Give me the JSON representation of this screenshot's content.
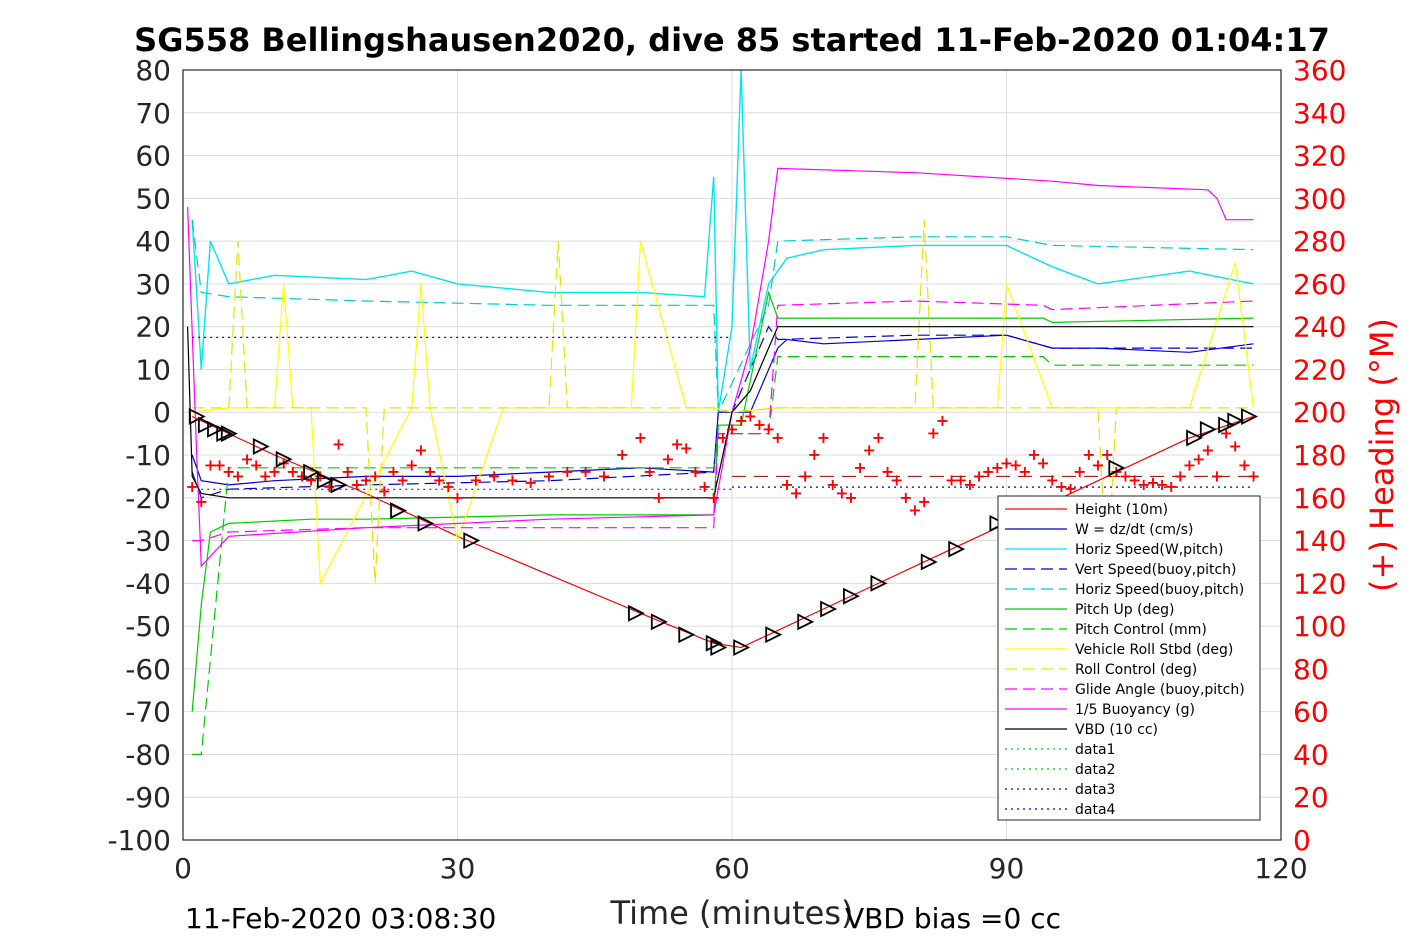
{
  "chart_data": {
    "type": "line",
    "title": "SG558 Bellingshausen2020, dive 85 started 11-Feb-2020 01:04:17",
    "xlabel": "Time (minutes)",
    "ylabel_right": "(+) Heading (°M)",
    "xlim": [
      0,
      120
    ],
    "ylim": [
      -100,
      80
    ],
    "ylim_right": [
      0,
      360
    ],
    "x_ticks": [
      "0",
      "30",
      "60",
      "90",
      "120"
    ],
    "y_ticks": [
      "80",
      "70",
      "60",
      "50",
      "40",
      "30",
      "20",
      "10",
      "0",
      "-10",
      "-20",
      "-30",
      "-40",
      "-50",
      "-60",
      "-70",
      "-80",
      "-90",
      "-100"
    ],
    "y_ticks_right": [
      "360",
      "340",
      "320",
      "300",
      "280",
      "260",
      "240",
      "220",
      "200",
      "180",
      "160",
      "140",
      "120",
      "100",
      "80",
      "60",
      "40",
      "20",
      "0"
    ],
    "grid": true,
    "legend_position": "bottom-right",
    "colors": {
      "height": "#ff0000",
      "w": "#0000cc",
      "horiz_w": "#00e5ee",
      "vert_buoy": "#0000cc",
      "horiz_buoy": "#00cccc",
      "pitch": "#00cc00",
      "pitch_control": "#00cc00",
      "roll": "#ffff00",
      "roll_control": "#e6e600",
      "glide": "#ff00ff",
      "buoyancy": "#ff00ff",
      "vbd": "#000000",
      "heading": "#ff0000",
      "data1": "#00cc00",
      "data2": "#00cc00",
      "data3": "#0000cc",
      "data4": "#0000cc"
    },
    "series": [
      {
        "key": "height",
        "name": "Height (10m)",
        "x": [
          1,
          10,
          20,
          30,
          40,
          50,
          58,
          61,
          64,
          70,
          80,
          90,
          100,
          110,
          117
        ],
        "values": [
          -1,
          -10,
          -19,
          -29,
          -38,
          -47,
          -54,
          -55,
          -52,
          -46,
          -36,
          -26,
          -16,
          -6,
          -1
        ]
      },
      {
        "key": "w",
        "name": "W = dz/dt (cm/s)",
        "x": [
          1,
          2,
          5,
          10,
          20,
          30,
          40,
          50,
          58,
          58.5,
          60,
          62,
          63,
          65,
          66,
          70,
          80,
          90,
          95,
          100,
          110,
          117
        ],
        "values": [
          -10,
          -16,
          -17,
          -16,
          -15,
          -15,
          -14,
          -13,
          -14,
          0,
          0,
          0,
          5,
          15,
          17,
          16,
          17,
          18,
          15,
          15,
          14,
          16
        ]
      },
      {
        "key": "horiz_w",
        "name": "Horiz Speed(W,pitch)",
        "x": [
          1,
          2,
          3,
          5,
          10,
          20,
          25,
          30,
          40,
          50,
          57,
          58,
          58.5,
          60,
          61,
          62,
          64,
          66,
          70,
          80,
          90,
          95,
          100,
          110,
          117
        ],
        "values": [
          45,
          10,
          40,
          30,
          32,
          31,
          33,
          30,
          28,
          28,
          27,
          55,
          0,
          20,
          80,
          10,
          30,
          36,
          38,
          39,
          39,
          34,
          30,
          33,
          30
        ]
      },
      {
        "key": "vert_buoy",
        "name": "Vert Speed(buoy,pitch)",
        "dash": "12,6",
        "x": [
          1,
          2,
          5,
          20,
          40,
          58,
          58.5,
          60,
          64,
          65,
          80,
          90,
          95,
          117
        ],
        "values": [
          -14,
          -20,
          -18,
          -17,
          -16,
          -14,
          0,
          0,
          20,
          17,
          18,
          18,
          15,
          15
        ]
      },
      {
        "key": "horiz_buoy",
        "name": "Horiz Speed(buoy,pitch)",
        "dash": "12,6",
        "x": [
          1,
          2,
          5,
          20,
          40,
          58,
          58.5,
          64,
          65,
          80,
          90,
          95,
          117
        ],
        "values": [
          45,
          28,
          27,
          26,
          25,
          25,
          0,
          25,
          40,
          41,
          41,
          39,
          38
        ]
      },
      {
        "key": "pitch",
        "name": "Pitch Up (deg)",
        "x": [
          1,
          2,
          3,
          5,
          14,
          20,
          40,
          58,
          58.5,
          61,
          64,
          65,
          80,
          94,
          95,
          117
        ],
        "values": [
          -70,
          -45,
          -28,
          -26,
          -25,
          -25,
          -24,
          -24,
          -3,
          -3,
          28,
          22,
          22,
          22,
          21,
          22
        ]
      },
      {
        "key": "pitch_control",
        "name": "Pitch Control (mm)",
        "dash": "12,6",
        "x": [
          1,
          2,
          5,
          20,
          40,
          58,
          58.5,
          64,
          65,
          80,
          94,
          95,
          117
        ],
        "values": [
          -80,
          -80,
          -13,
          -13,
          -13,
          -13,
          -5,
          -5,
          13,
          13,
          13,
          11,
          11
        ]
      },
      {
        "key": "roll",
        "name": "Vehicle Roll Stbd (deg)",
        "x": [
          1,
          5,
          10,
          11,
          12,
          14,
          15,
          25,
          26,
          27,
          30,
          35,
          40,
          49,
          50,
          55,
          58,
          60,
          65,
          70,
          80,
          89,
          90,
          95,
          100,
          105,
          110,
          115,
          117
        ],
        "values": [
          0,
          1,
          1,
          30,
          1,
          1,
          -40,
          1,
          30,
          1,
          -30,
          1,
          1,
          1,
          40,
          1,
          1,
          0,
          1,
          1,
          1,
          1,
          30,
          1,
          1,
          1,
          1,
          35,
          1
        ]
      },
      {
        "key": "roll_control",
        "name": "Roll Control (deg)",
        "dash": "12,6",
        "x": [
          1,
          5,
          6,
          7,
          20,
          21,
          22,
          40,
          41,
          42,
          58,
          60,
          65,
          80,
          81,
          82,
          100,
          101,
          102,
          117
        ],
        "values": [
          1,
          1,
          40,
          1,
          1,
          -40,
          1,
          1,
          40,
          1,
          1,
          0,
          1,
          1,
          45,
          1,
          1,
          -40,
          1,
          1
        ]
      },
      {
        "key": "glide",
        "name": "Glide Angle (buoy,pitch)",
        "dash": "12,6",
        "x": [
          1,
          2,
          5,
          20,
          40,
          58,
          58.5,
          64,
          65,
          80,
          94,
          95,
          117
        ],
        "values": [
          -30,
          -30,
          -28,
          -27,
          -27,
          -27,
          -5,
          -5,
          25,
          26,
          25,
          24,
          26
        ]
      },
      {
        "key": "buoyancy",
        "name": "1/5 Buoyancy (g)",
        "x": [
          0.5,
          1.5,
          2,
          5,
          20,
          40,
          58,
          60,
          62,
          64,
          65,
          80,
          95,
          100,
          112,
          113,
          114,
          117
        ],
        "values": [
          48,
          -10,
          -36,
          -29,
          -27,
          -25,
          -24,
          0,
          15,
          40,
          57,
          56,
          54,
          53,
          52,
          50,
          45,
          45
        ]
      },
      {
        "key": "vbd",
        "name": "VBD (10 cc)",
        "x": [
          0.5,
          1,
          2,
          5,
          20,
          40,
          58,
          60,
          62,
          64,
          65,
          80,
          117
        ],
        "values": [
          20,
          -15,
          -19,
          -20,
          -20,
          -20,
          -20,
          0,
          5,
          15,
          20,
          20,
          20
        ]
      },
      {
        "key": "data1",
        "name": "data1",
        "dot": true,
        "x": [],
        "values": []
      },
      {
        "key": "data2",
        "name": "data2",
        "dot": true,
        "x": [],
        "values": []
      },
      {
        "key": "data3",
        "name": "data3",
        "dot": true,
        "x": [
          1,
          60
        ],
        "values": [
          17.5,
          17.5
        ]
      },
      {
        "key": "data4",
        "name": "data4",
        "dot": true,
        "x": [
          60,
          117
        ],
        "values": [
          -17.5,
          -17.5
        ]
      }
    ],
    "reference_lines": [
      {
        "color": "#0000cc",
        "dash": "2,4",
        "x": [
          2,
          60
        ],
        "values": [
          -18,
          -18
        ]
      },
      {
        "color": "#990000",
        "dash": "14,8",
        "x": [
          60,
          117
        ],
        "values": [
          -15,
          -15
        ]
      }
    ],
    "heading": {
      "name": "Heading",
      "axis": "right",
      "marker": "+",
      "x": [
        1,
        2,
        3,
        4,
        5,
        6,
        7,
        8,
        9,
        10,
        11,
        12,
        13,
        14,
        15,
        16,
        17,
        18,
        19,
        20,
        21,
        22,
        23,
        24,
        25,
        26,
        27,
        28,
        29,
        30,
        32,
        34,
        36,
        38,
        40,
        42,
        44,
        46,
        48,
        50,
        51,
        52,
        53,
        54,
        55,
        56,
        57,
        58,
        59,
        60,
        61,
        62,
        63,
        64,
        65,
        66,
        67,
        68,
        69,
        70,
        71,
        72,
        73,
        74,
        75,
        76,
        77,
        78,
        79,
        80,
        81,
        82,
        83,
        84,
        85,
        86,
        87,
        88,
        89,
        90,
        91,
        92,
        93,
        94,
        95,
        96,
        97,
        98,
        99,
        100,
        101,
        102,
        103,
        104,
        105,
        106,
        107,
        108,
        109,
        110,
        111,
        112,
        113,
        114,
        115,
        116,
        117
      ],
      "values": [
        165,
        158,
        175,
        175,
        172,
        170,
        178,
        175,
        170,
        172,
        176,
        172,
        170,
        168,
        170,
        165,
        185,
        172,
        166,
        168,
        170,
        163,
        172,
        168,
        175,
        182,
        172,
        168,
        165,
        160,
        168,
        170,
        168,
        167,
        170,
        172,
        172,
        170,
        180,
        188,
        172,
        160,
        178,
        185,
        183,
        172,
        165,
        160,
        188,
        192,
        196,
        198,
        194,
        192,
        188,
        166,
        162,
        170,
        180,
        188,
        166,
        162,
        160,
        174,
        182,
        188,
        172,
        168,
        160,
        154,
        158,
        190,
        196,
        168,
        168,
        166,
        170,
        172,
        174,
        176,
        175,
        172,
        180,
        176,
        168,
        165,
        164,
        172,
        180,
        175,
        180,
        172,
        170,
        168,
        166,
        167,
        166,
        165,
        170,
        175,
        178,
        182,
        170,
        190,
        184,
        175,
        170
      ]
    },
    "markers": {
      "name": "Height markers",
      "x": [
        1.5,
        2.5,
        3.5,
        4.5,
        5,
        8.5,
        11,
        14,
        15.5,
        17,
        23.5,
        26.5,
        31.5,
        49.5,
        52,
        55,
        58,
        58.5,
        61,
        64.5,
        68,
        70.5,
        73,
        76,
        81.5,
        84.5,
        89,
        102,
        110.5,
        112,
        114,
        115,
        116.5
      ],
      "values": [
        -1,
        -3,
        -4,
        -5,
        -5,
        -8,
        -11,
        -14,
        -16,
        -17,
        -23,
        -26,
        -30,
        -47,
        -49,
        -52,
        -54,
        -55,
        -55,
        -52,
        -49,
        -46,
        -43,
        -40,
        -35,
        -32,
        -26,
        -13,
        -6,
        -4,
        -3,
        -2,
        -1
      ]
    },
    "footer_left": "11-Feb-2020 03:08:30",
    "footer_right": "VBD bias =0 cc"
  }
}
